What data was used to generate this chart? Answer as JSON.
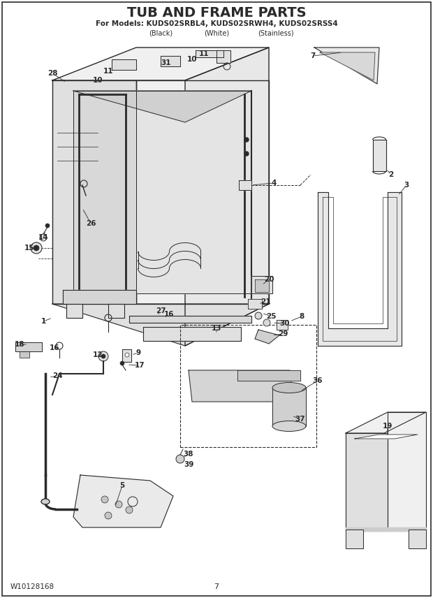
{
  "title": "TUB AND FRAME PARTS",
  "subtitle": "For Models: KUDS02SRBL4, KUDS02SRWH4, KUDS02SRSS4",
  "subtitle2_black": "(Black)",
  "subtitle2_white": "(White)",
  "subtitle2_stainless": "(Stainless)",
  "footer_left": "W10128168",
  "footer_center": "7",
  "bg_color": "#ffffff",
  "line_color": "#2a2a2a",
  "fill_light": "#f0f0f0",
  "fill_mid": "#e0e0e0",
  "fill_dark": "#cccccc"
}
